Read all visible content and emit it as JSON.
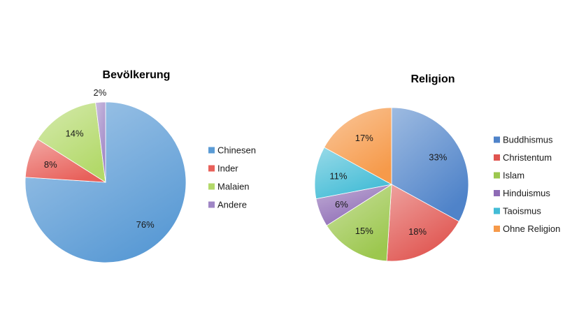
{
  "chart_data": [
    {
      "type": "pie",
      "title": "Bevölkerung",
      "legend_position": "right",
      "slices": [
        {
          "label": "Chinesen",
          "value": 76,
          "value_label": "76%",
          "color": "#5b9bd5"
        },
        {
          "label": "Inder",
          "value": 8,
          "value_label": "8%",
          "color": "#e8605a"
        },
        {
          "label": "Malaien",
          "value": 14,
          "value_label": "14%",
          "color": "#b3d96a"
        },
        {
          "label": "Andere",
          "value": 2,
          "value_label": "2%",
          "color": "#9f86c5"
        }
      ]
    },
    {
      "type": "pie",
      "title": "Religion",
      "legend_position": "right",
      "slices": [
        {
          "label": "Buddhismus",
          "value": 33,
          "value_label": "33%",
          "color": "#4f83c9"
        },
        {
          "label": "Christentum",
          "value": 18,
          "value_label": "18%",
          "color": "#e05550"
        },
        {
          "label": "Islam",
          "value": 15,
          "value_label": "15%",
          "color": "#9cc74e"
        },
        {
          "label": "Hinduismus",
          "value": 6,
          "value_label": "6%",
          "color": "#8e6bb5"
        },
        {
          "label": "Taoismus",
          "value": 11,
          "value_label": "11%",
          "color": "#43bcd6"
        },
        {
          "label": "Ohne Religion",
          "value": 17,
          "value_label": "17%",
          "color": "#f69a4a"
        }
      ]
    }
  ]
}
